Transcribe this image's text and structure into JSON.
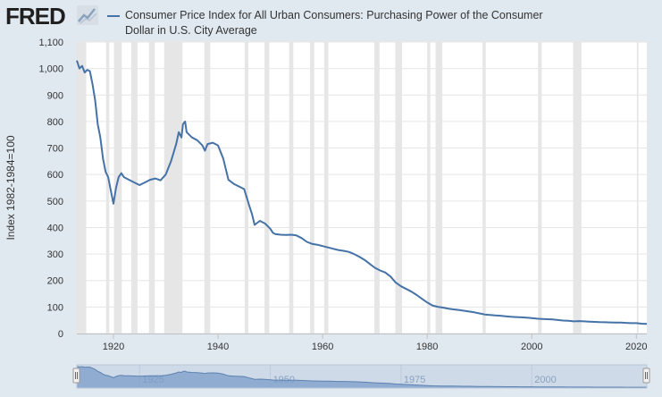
{
  "header": {
    "logo_text": "FRED",
    "logo_icon": "line-chart-icon"
  },
  "chart_data": {
    "type": "line",
    "title": "Consumer Price Index for All Urban Consumers: Purchasing Power of the Consumer Dollar in U.S. City Average",
    "xlabel": "",
    "ylabel": "Index 1982-1984=100",
    "xlim": [
      1913,
      2022
    ],
    "ylim": [
      0,
      1100
    ],
    "yticks": [
      0,
      100,
      200,
      300,
      400,
      500,
      600,
      700,
      800,
      900,
      1000,
      1100
    ],
    "ytick_labels": [
      "0",
      "100",
      "200",
      "300",
      "400",
      "500",
      "600",
      "700",
      "800",
      "900",
      "1,000",
      "1,100"
    ],
    "xticks": [
      1920,
      1940,
      1960,
      1980,
      2000,
      2020
    ],
    "xtick_labels": [
      "1920",
      "1940",
      "1960",
      "1980",
      "2000",
      "2020"
    ],
    "grid": true,
    "legend": "top",
    "colors": {
      "line": "#4572a7",
      "recession": "#e6e6e6",
      "navigator_fill": "#7f9fc9"
    },
    "series": [
      {
        "name": "Consumer Price Index for All Urban Consumers: Purchasing Power of the Consumer Dollar in U.S. City Average",
        "x": [
          1913,
          1913.5,
          1914,
          1914.5,
          1915,
          1915.5,
          1916,
          1916.5,
          1917,
          1917.5,
          1918,
          1918.5,
          1919,
          1919.5,
          1920,
          1920.5,
          1921,
          1921.5,
          1922,
          1922.5,
          1923,
          1924,
          1925,
          1926,
          1927,
          1928,
          1929,
          1930,
          1931,
          1932,
          1932.5,
          1933,
          1933.3,
          1933.7,
          1934,
          1935,
          1936,
          1937,
          1937.5,
          1938,
          1939,
          1940,
          1941,
          1941.5,
          1942,
          1943,
          1944,
          1945,
          1946,
          1946.5,
          1947,
          1948,
          1949,
          1950,
          1950.5,
          1951,
          1952,
          1953,
          1954,
          1955,
          1956,
          1957,
          1958,
          1959,
          1960,
          1961,
          1962,
          1963,
          1964,
          1965,
          1966,
          1967,
          1968,
          1969,
          1970,
          1971,
          1972,
          1973,
          1974,
          1975,
          1976,
          1977,
          1978,
          1979,
          1980,
          1981,
          1982,
          1983,
          1984,
          1985,
          1986,
          1987,
          1988,
          1989,
          1990,
          1991,
          1992,
          1993,
          1994,
          1995,
          1996,
          1997,
          1998,
          1999,
          2000,
          2001,
          2002,
          2003,
          2004,
          2005,
          2006,
          2007,
          2008,
          2009,
          2010,
          2011,
          2012,
          2013,
          2014,
          2015,
          2016,
          2017,
          2018,
          2019,
          2020,
          2021,
          2022
        ],
        "y": [
          1030,
          1000,
          1010,
          985,
          995,
          990,
          940,
          880,
          790,
          740,
          660,
          610,
          590,
          540,
          490,
          550,
          590,
          605,
          590,
          585,
          580,
          570,
          560,
          570,
          580,
          585,
          578,
          600,
          650,
          715,
          760,
          740,
          790,
          800,
          760,
          740,
          730,
          710,
          690,
          715,
          720,
          710,
          660,
          620,
          580,
          565,
          555,
          545,
          480,
          450,
          410,
          425,
          415,
          395,
          380,
          375,
          373,
          372,
          373,
          370,
          360,
          346,
          338,
          335,
          330,
          325,
          320,
          315,
          312,
          308,
          300,
          290,
          278,
          263,
          248,
          238,
          230,
          215,
          192,
          178,
          168,
          158,
          145,
          131,
          117,
          106,
          101,
          98,
          94,
          91,
          89,
          86,
          83,
          80,
          76,
          72,
          70,
          68,
          67,
          65,
          63,
          62,
          61,
          60,
          58,
          56,
          55,
          54,
          53,
          51,
          49,
          48,
          46,
          47,
          46,
          45,
          44,
          43,
          42.5,
          42,
          41.5,
          41,
          40,
          39,
          39,
          37,
          36
        ]
      }
    ],
    "recessions": [
      [
        1913,
        1914.8
      ],
      [
        1918.6,
        1919.2
      ],
      [
        1920.1,
        1921.6
      ],
      [
        1923.4,
        1924.6
      ],
      [
        1926.8,
        1927.9
      ],
      [
        1929.7,
        1933.2
      ],
      [
        1937.4,
        1938.5
      ],
      [
        1945.1,
        1945.8
      ],
      [
        1948.9,
        1949.8
      ],
      [
        1953.6,
        1954.4
      ],
      [
        1957.6,
        1958.4
      ],
      [
        1960.3,
        1961.1
      ],
      [
        1969.9,
        1970.9
      ],
      [
        1973.9,
        1975.2
      ],
      [
        1980.0,
        1980.6
      ],
      [
        1981.6,
        1982.9
      ],
      [
        1990.6,
        1991.2
      ],
      [
        2001.2,
        2001.9
      ],
      [
        2007.9,
        2009.5
      ],
      [
        2020.1,
        2020.4
      ]
    ],
    "navigator": {
      "xtick_labels": [
        "1925",
        "1950",
        "1975",
        "2000"
      ],
      "xticks": [
        1925,
        1950,
        1975,
        2000
      ]
    }
  }
}
